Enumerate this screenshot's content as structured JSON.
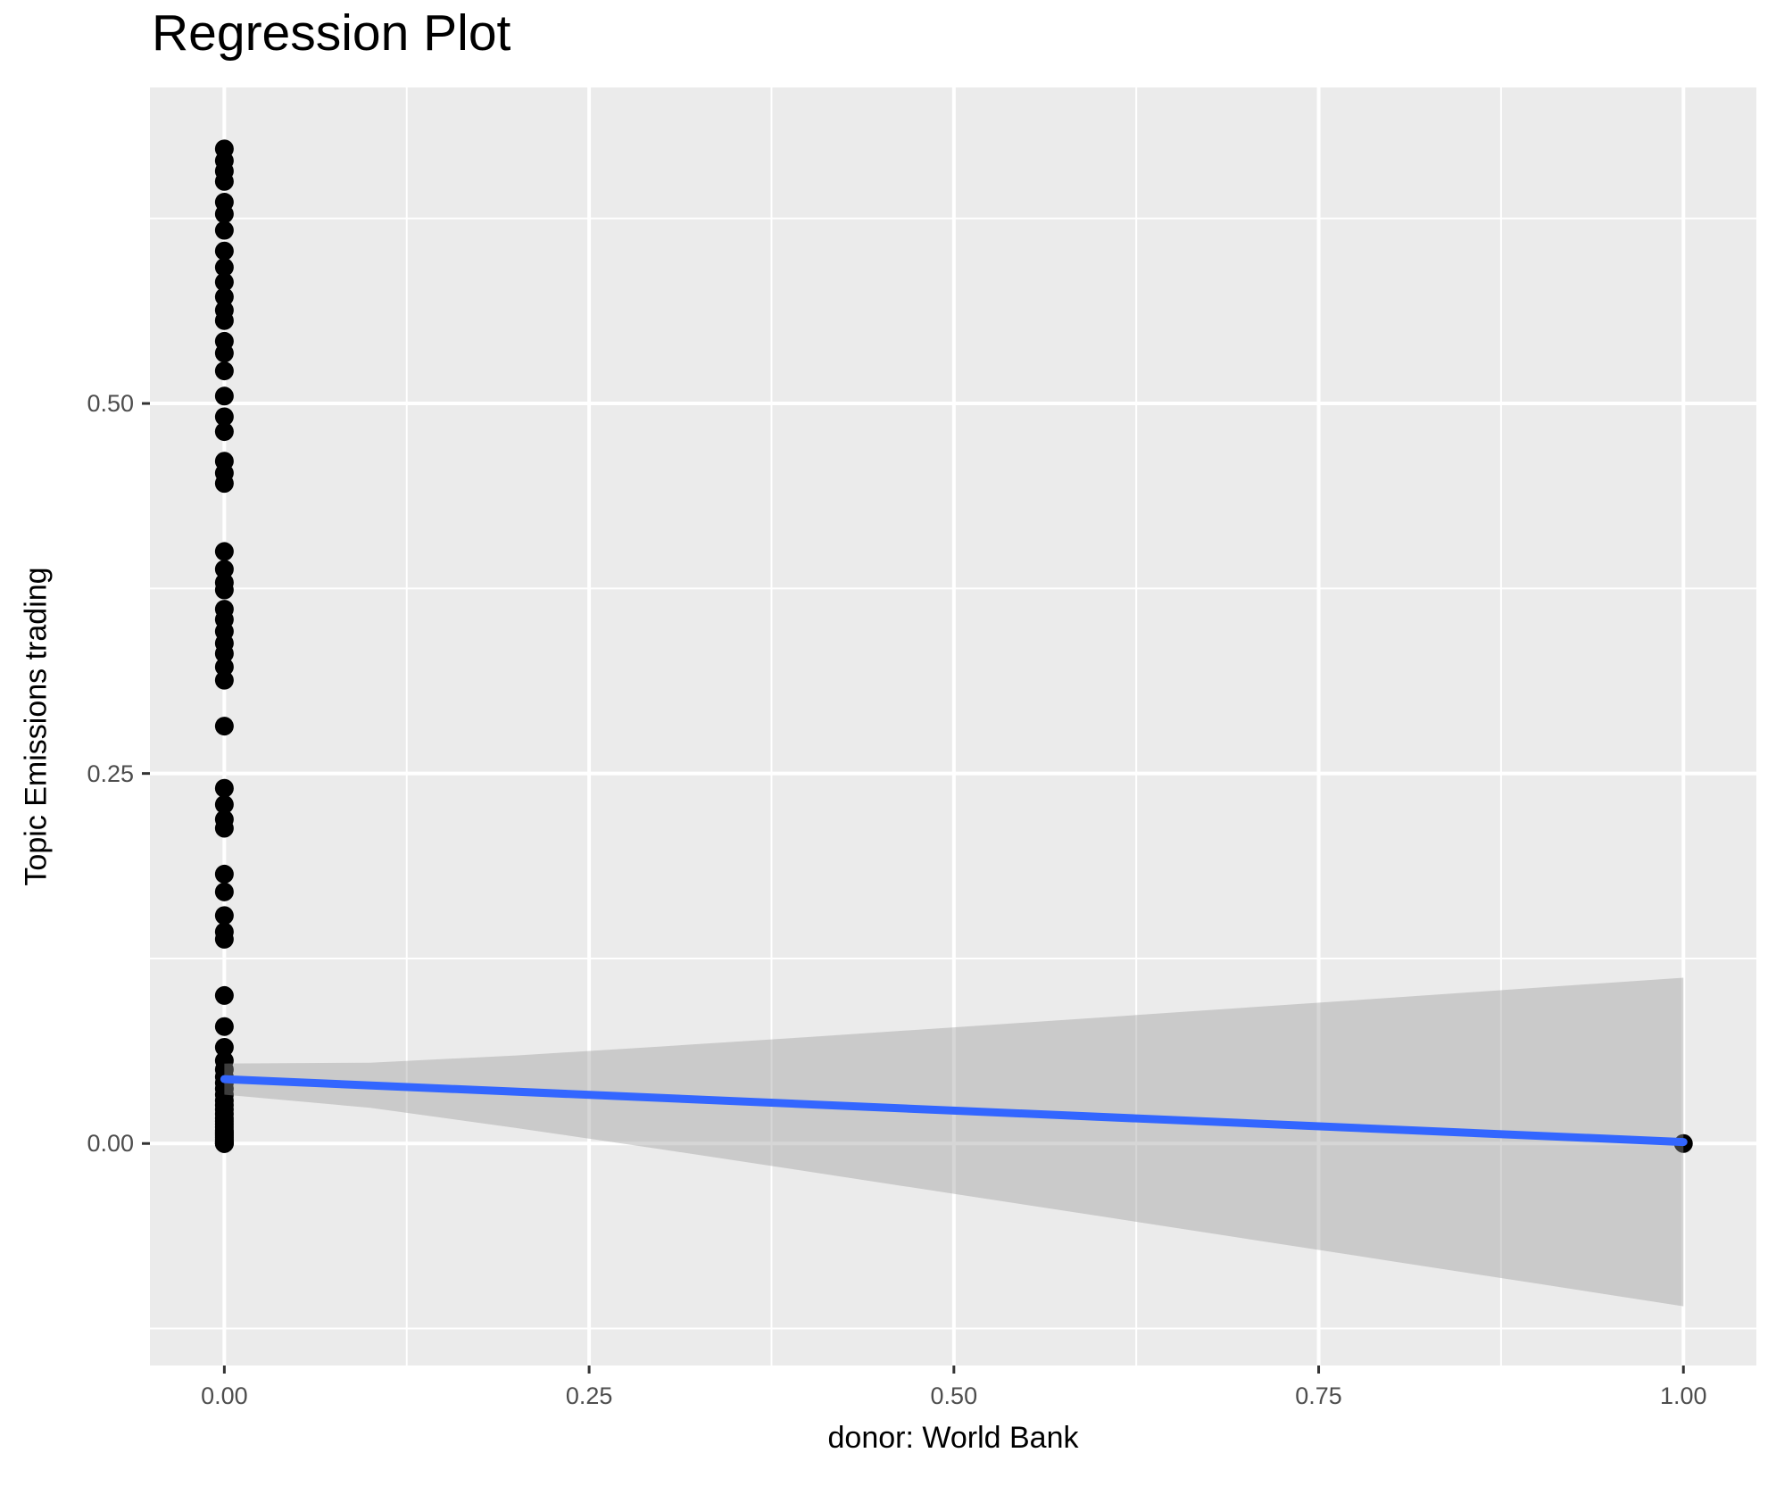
{
  "chart_data": {
    "type": "scatter",
    "title": "Regression Plot",
    "xlabel": "donor: World Bank",
    "ylabel": "Topic Emissions trading",
    "xlim": [
      -0.051,
      1.05
    ],
    "ylim": [
      -0.15,
      0.7135
    ],
    "x_ticks": [
      0.0,
      0.25,
      0.5,
      0.75,
      1.0
    ],
    "x_tick_labels": [
      "0.00",
      "0.25",
      "0.50",
      "0.75",
      "1.00"
    ],
    "y_ticks": [
      0.0,
      0.25,
      0.5
    ],
    "y_tick_labels": [
      "0.00",
      "0.25",
      "0.50"
    ],
    "x_minor_ticks": [
      0.125,
      0.375,
      0.625,
      0.875
    ],
    "y_minor_ticks": [
      -0.125,
      0.125,
      0.375,
      0.625
    ],
    "grid": true,
    "legend_position": "none",
    "series": [
      {
        "name": "observations",
        "points": [
          [
            0,
            0.672
          ],
          [
            0,
            0.664
          ],
          [
            0,
            0.657
          ],
          [
            0,
            0.65
          ],
          [
            0,
            0.636
          ],
          [
            0,
            0.628
          ],
          [
            0,
            0.617
          ],
          [
            0,
            0.603
          ],
          [
            0,
            0.592
          ],
          [
            0,
            0.582
          ],
          [
            0,
            0.572
          ],
          [
            0,
            0.563
          ],
          [
            0,
            0.556
          ],
          [
            0,
            0.542
          ],
          [
            0,
            0.534
          ],
          [
            0,
            0.522
          ],
          [
            0,
            0.505
          ],
          [
            0,
            0.491
          ],
          [
            0,
            0.481
          ],
          [
            0,
            0.461
          ],
          [
            0,
            0.453
          ],
          [
            0,
            0.446
          ],
          [
            0,
            0.4
          ],
          [
            0,
            0.388
          ],
          [
            0,
            0.379
          ],
          [
            0,
            0.374
          ],
          [
            0,
            0.361
          ],
          [
            0,
            0.354
          ],
          [
            0,
            0.346
          ],
          [
            0,
            0.338
          ],
          [
            0,
            0.331
          ],
          [
            0,
            0.322
          ],
          [
            0,
            0.313
          ],
          [
            0,
            0.282
          ],
          [
            0,
            0.24
          ],
          [
            0,
            0.229
          ],
          [
            0,
            0.219
          ],
          [
            0,
            0.213
          ],
          [
            0,
            0.182
          ],
          [
            0,
            0.17
          ],
          [
            0,
            0.154
          ],
          [
            0,
            0.143
          ],
          [
            0,
            0.138
          ],
          [
            0,
            0.1
          ],
          [
            0,
            0.079
          ],
          [
            0,
            0.065
          ],
          [
            0,
            0.056
          ],
          [
            0,
            0.05
          ],
          [
            0,
            0.045
          ],
          [
            0,
            0.041
          ],
          [
            0,
            0.037
          ],
          [
            0,
            0.033
          ],
          [
            0,
            0.029
          ],
          [
            0,
            0.026
          ],
          [
            0,
            0.023
          ],
          [
            0,
            0.02
          ],
          [
            0,
            0.017
          ],
          [
            0,
            0.015
          ],
          [
            0,
            0.013
          ],
          [
            0,
            0.011
          ],
          [
            0,
            0.009
          ],
          [
            0,
            0.008
          ],
          [
            0,
            0.007
          ],
          [
            0,
            0.006
          ],
          [
            0,
            0.005
          ],
          [
            0,
            0.004
          ],
          [
            0,
            0.003
          ],
          [
            0,
            0.002
          ],
          [
            0,
            0.001
          ],
          [
            0,
            0.001
          ],
          [
            0,
            0.0
          ],
          [
            0,
            0.0
          ],
          [
            0,
            0.0
          ],
          [
            1,
            0.0
          ]
        ]
      }
    ],
    "regression_line": {
      "x": [
        0,
        1
      ],
      "y": [
        0.0435,
        0.001
      ]
    },
    "confidence_band": {
      "x": [
        0.0,
        0.1,
        0.2,
        0.3,
        0.4,
        0.5,
        0.6,
        0.7,
        0.8,
        0.9,
        1.0
      ],
      "upper": [
        0.054,
        0.0546,
        0.0595,
        0.0656,
        0.0719,
        0.0785,
        0.0851,
        0.0918,
        0.0985,
        0.1053,
        0.112
      ],
      "lower": [
        0.033,
        0.0241,
        0.0105,
        -0.004,
        -0.0189,
        -0.034,
        -0.0491,
        -0.0643,
        -0.0795,
        -0.0947,
        -0.11
      ]
    },
    "colors": {
      "point": "#000000",
      "line": "#3366FF",
      "band": "rgba(153,153,153,0.4)",
      "panel_background": "#EBEBEB",
      "grid": "#FFFFFF",
      "tick_mark": "#333333",
      "tick_label": "#4D4D4D",
      "title_text": "#000000",
      "page_background": "#FFFFFF"
    }
  }
}
